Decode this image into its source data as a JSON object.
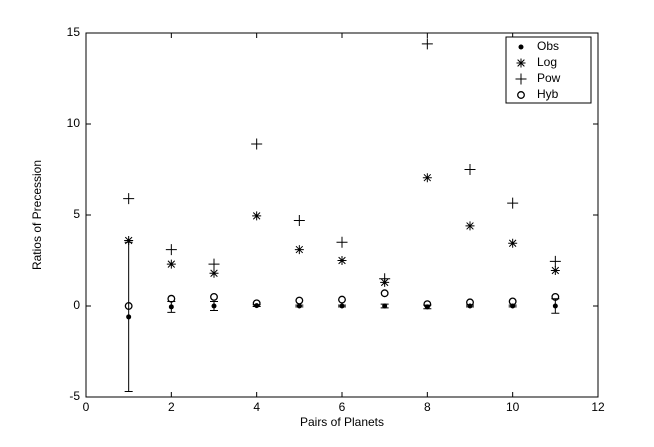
{
  "chart_data": {
    "type": "scatter",
    "xlabel": "Pairs of Planets",
    "ylabel": "Ratios of Precession",
    "xlim": [
      0,
      12
    ],
    "xticks": [
      0,
      2,
      4,
      6,
      8,
      10,
      12
    ],
    "ylim": [
      -5,
      15
    ],
    "yticks": [
      -5,
      0,
      5,
      10,
      15
    ],
    "legend": "upper right",
    "grid": false,
    "series": [
      {
        "name": "Obs",
        "color": "#000000",
        "marker": "dot",
        "x": [
          1,
          2,
          3,
          4,
          5,
          6,
          7,
          8,
          9,
          10,
          11
        ],
        "values": [
          -0.6,
          -0.05,
          0,
          0.02,
          0,
          0,
          0,
          -0.05,
          0,
          0,
          0
        ],
        "errors": [
          4.1,
          0.3,
          0.25,
          0.05,
          0.05,
          0.05,
          0.1,
          0.1,
          0.05,
          0.05,
          0.4
        ]
      },
      {
        "name": "Log",
        "color": "#000000",
        "marker": "asterisk",
        "x": [
          1,
          2,
          3,
          4,
          5,
          6,
          7,
          8,
          9,
          10,
          11
        ],
        "values": [
          3.6,
          2.3,
          1.8,
          4.95,
          3.1,
          2.5,
          1.3,
          7.05,
          4.4,
          3.45,
          1.95
        ]
      },
      {
        "name": "Pow",
        "color": "#000000",
        "marker": "plus",
        "x": [
          1,
          2,
          3,
          4,
          5,
          6,
          7,
          8,
          9,
          10,
          11
        ],
        "values": [
          5.9,
          3.1,
          2.3,
          8.9,
          4.7,
          3.5,
          1.5,
          14.4,
          7.5,
          5.65,
          2.45
        ]
      },
      {
        "name": "Hyb",
        "color": "#000000",
        "marker": "circle",
        "x": [
          1,
          2,
          3,
          4,
          5,
          6,
          7,
          8,
          9,
          10,
          11
        ],
        "values": [
          0,
          0.4,
          0.5,
          0.15,
          0.3,
          0.35,
          0.7,
          0.1,
          0.2,
          0.25,
          0.5
        ]
      }
    ]
  }
}
